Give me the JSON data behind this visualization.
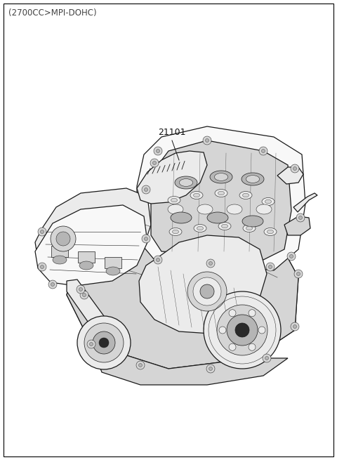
{
  "background_color": "#ffffff",
  "border_color": "#000000",
  "subtitle_text": "(2700CC>MPI-DOHC)",
  "subtitle_fontsize": 8.5,
  "subtitle_color": "#444444",
  "part_label": "21101",
  "part_label_fontsize": 9.0,
  "part_label_color": "#111111",
  "figure_width": 4.8,
  "figure_height": 6.55,
  "dpi": 100,
  "border_linewidth": 0.8,
  "ec": "#1a1a1a",
  "fc_white": "#f8f8f8",
  "fc_light": "#ebebeb",
  "fc_mid": "#d5d5d5",
  "fc_dark": "#b5b5b5",
  "fc_black": "#2a2a2a",
  "lw_main": 0.9,
  "lw_thin": 0.5
}
